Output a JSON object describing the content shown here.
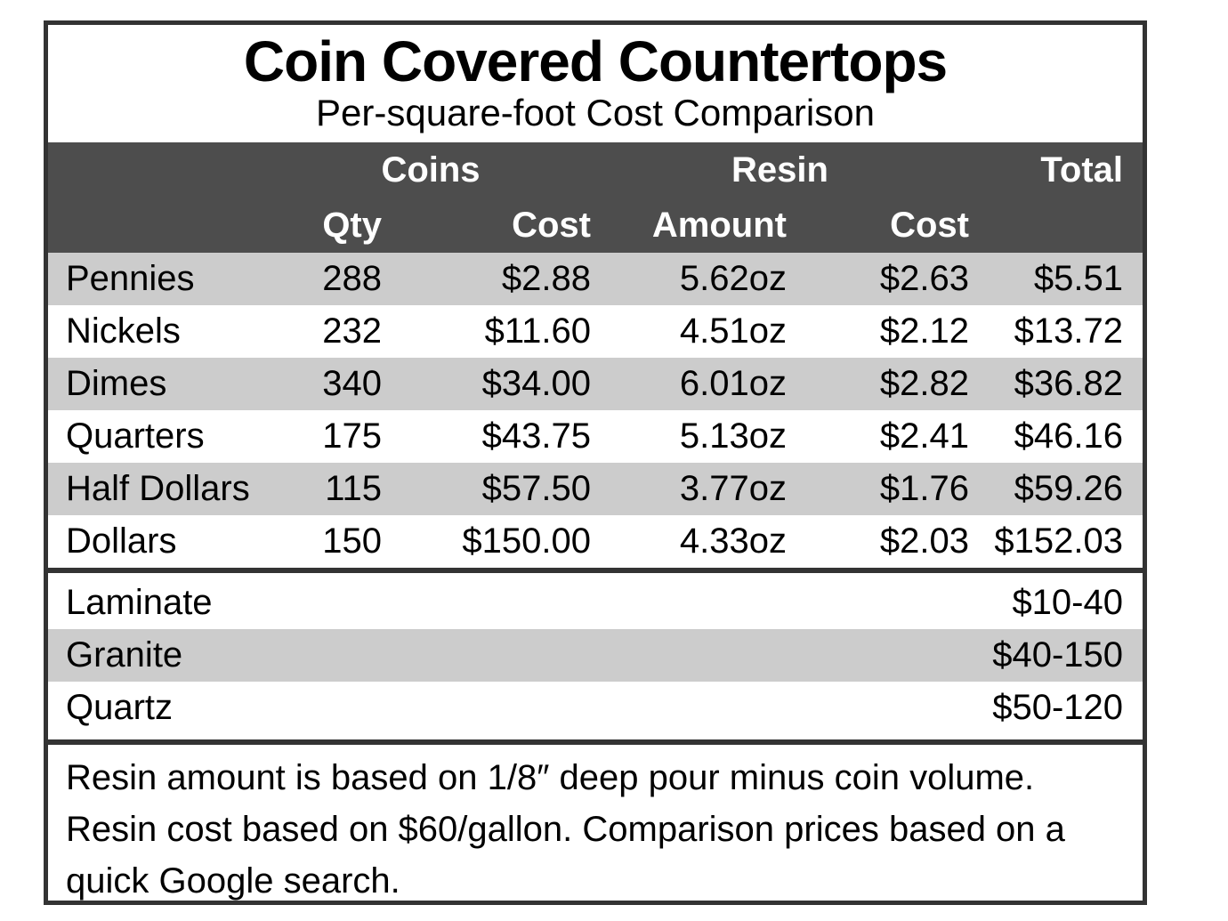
{
  "chart_data": {
    "type": "table",
    "title": "Coin Covered Countertops",
    "subtitle": "Per-square-foot Cost Comparison",
    "group_headers": {
      "coins": "Coins",
      "resin": "Resin",
      "total": "Total"
    },
    "sub_headers": {
      "qty": "Qty",
      "coin_cost": "Cost",
      "amount": "Amount",
      "resin_cost": "Cost"
    },
    "rows": [
      {
        "label": "Pennies",
        "qty": "288",
        "coin_cost": "$2.88",
        "amount": "5.62oz",
        "resin_cost": "$2.63",
        "total": "$5.51"
      },
      {
        "label": "Nickels",
        "qty": "232",
        "coin_cost": "$11.60",
        "amount": "4.51oz",
        "resin_cost": "$2.12",
        "total": "$13.72"
      },
      {
        "label": "Dimes",
        "qty": "340",
        "coin_cost": "$34.00",
        "amount": "6.01oz",
        "resin_cost": "$2.82",
        "total": "$36.82"
      },
      {
        "label": "Quarters",
        "qty": "175",
        "coin_cost": "$43.75",
        "amount": "5.13oz",
        "resin_cost": "$2.41",
        "total": "$46.16"
      },
      {
        "label": "Half Dollars",
        "qty": "115",
        "coin_cost": "$57.50",
        "amount": "3.77oz",
        "resin_cost": "$1.76",
        "total": "$59.26"
      },
      {
        "label": "Dollars",
        "qty": "150",
        "coin_cost": "$150.00",
        "amount": "4.33oz",
        "resin_cost": "$2.03",
        "total": "$152.03"
      }
    ],
    "comparison_rows": [
      {
        "label": "Laminate",
        "range": "$10-40"
      },
      {
        "label": "Granite",
        "range": "$40-150"
      },
      {
        "label": "Quartz",
        "range": "$50-120"
      }
    ],
    "footnote": "Resin amount is based on 1/8″ deep pour minus coin volume. Resin cost based on $60/gallon. Comparison prices based on a quick Google search.",
    "colors": {
      "header_band": "#4d4d4d",
      "row_stripe": "#cccccc",
      "border": "#333333"
    }
  }
}
